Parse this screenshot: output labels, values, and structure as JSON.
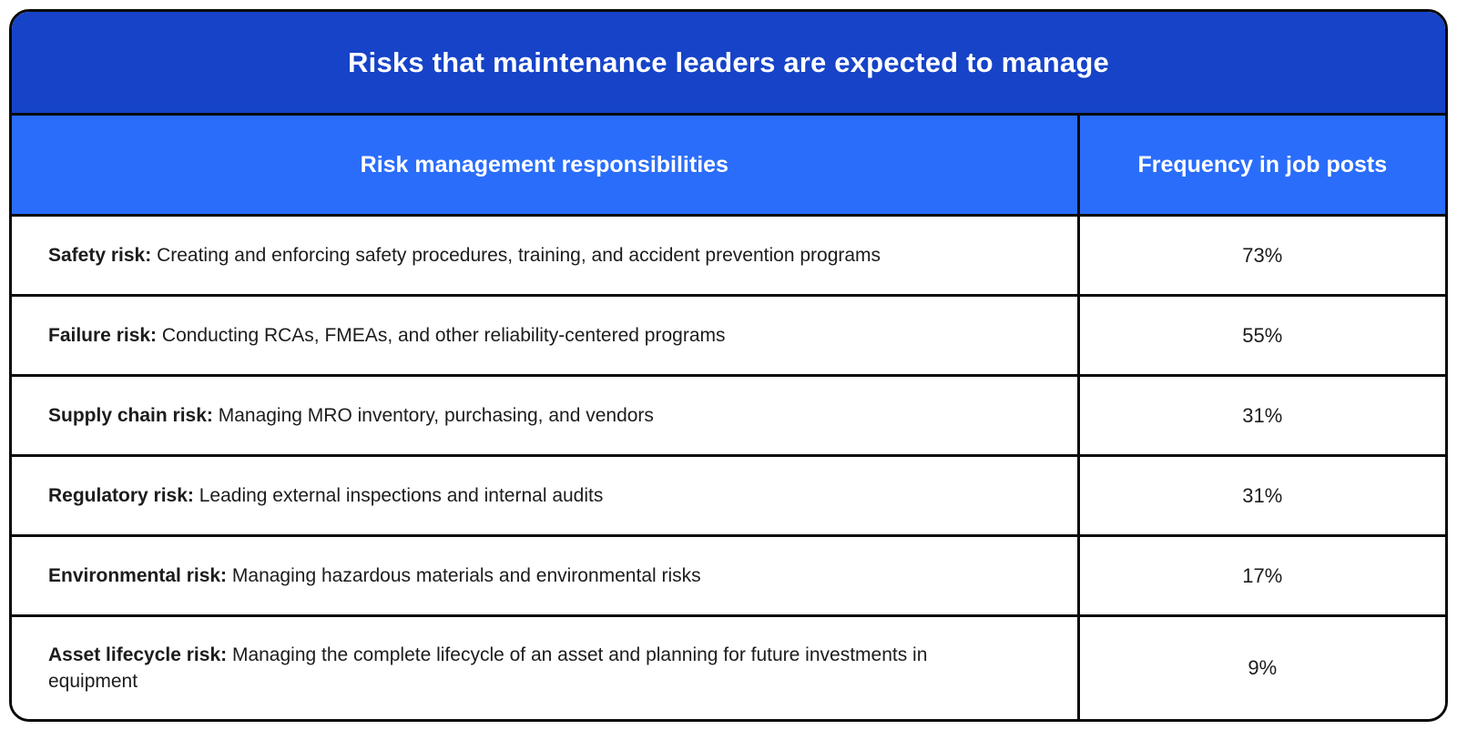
{
  "title_bar": {
    "title": "Risks that maintenance leaders are expected to manage"
  },
  "table": {
    "col_headers": {
      "responsibilities": "Risk management responsibilities",
      "frequency": "Frequency in job posts"
    },
    "rows": [
      {
        "label": "Safety risk:",
        "description": " Creating and enforcing safety procedures, training, and accident prevention programs",
        "frequency": "73%"
      },
      {
        "label": "Failure risk:",
        "description": " Conducting RCAs, FMEAs, and other reliability-centered programs",
        "frequency": "55%"
      },
      {
        "label": "Supply chain risk:",
        "description": " Managing MRO inventory, purchasing, and vendors",
        "frequency": "31%"
      },
      {
        "label": "Regulatory risk:",
        "description": " Leading external inspections and internal audits",
        "frequency": "31%"
      },
      {
        "label": "Environmental risk:",
        "description": " Managing hazardous materials and environmental risks",
        "frequency": "17%"
      },
      {
        "label": "Asset lifecycle risk:",
        "description": " Managing the complete lifecycle of an asset and planning for future investments in equipment",
        "frequency": "9%"
      }
    ]
  },
  "colors": {
    "title_bg": "#1643c8",
    "header_bg": "#2a6dfb",
    "grid_line": "#0a0a0a",
    "header_text": "#ffffff",
    "body_text": "#1c1c1c"
  },
  "chart_data": {
    "type": "table",
    "title": "Risks that maintenance leaders are expected to manage",
    "columns": [
      "Risk management responsibilities",
      "Frequency in job posts"
    ],
    "categories": [
      "Safety risk",
      "Failure risk",
      "Supply chain risk",
      "Regulatory risk",
      "Environmental risk",
      "Asset lifecycle risk"
    ],
    "values_percent": [
      73,
      55,
      31,
      31,
      17,
      9
    ],
    "cells": [
      [
        "Safety risk: Creating and enforcing safety procedures, training, and accident prevention programs",
        "73%"
      ],
      [
        "Failure risk: Conducting RCAs, FMEAs, and other reliability-centered programs",
        "55%"
      ],
      [
        "Supply chain risk: Managing MRO inventory, purchasing, and vendors",
        "31%"
      ],
      [
        "Regulatory risk: Leading external inspections and internal audits",
        "31%"
      ],
      [
        "Environmental risk: Managing hazardous materials and environmental risks",
        "17%"
      ],
      [
        "Asset lifecycle risk: Managing the complete lifecycle of an asset and planning for future investments in equipment",
        "9%"
      ]
    ]
  }
}
